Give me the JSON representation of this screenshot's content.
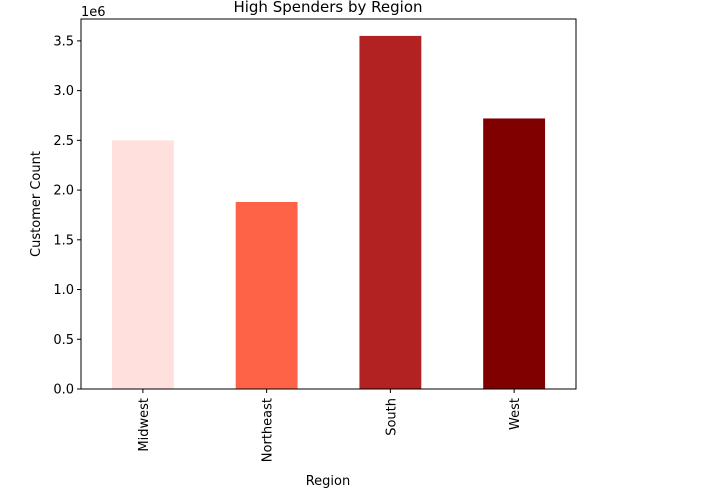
{
  "chart_data": {
    "type": "bar",
    "title": "High Spenders by Region",
    "xlabel": "Region",
    "ylabel": "Customer Count",
    "y_scale_label": "1e6",
    "categories": [
      "Midwest",
      "Northeast",
      "South",
      "West"
    ],
    "series": [
      {
        "values": [
          2500000,
          1880000,
          3550000,
          2720000
        ]
      }
    ],
    "bar_colors": [
      "#ffe0dc",
      "#ff6347",
      "#b22222",
      "#800000"
    ],
    "ylim": [
      0,
      3720000
    ],
    "y_ticks": [
      0,
      500000,
      1000000,
      1500000,
      2000000,
      2500000,
      3000000,
      3500000
    ],
    "y_tick_labels": [
      "0.0",
      "0.5",
      "1.0",
      "1.5",
      "2.0",
      "2.5",
      "3.0",
      "3.5"
    ],
    "x_tick_rotation": "vertical",
    "grid": false,
    "legend": "none"
  }
}
